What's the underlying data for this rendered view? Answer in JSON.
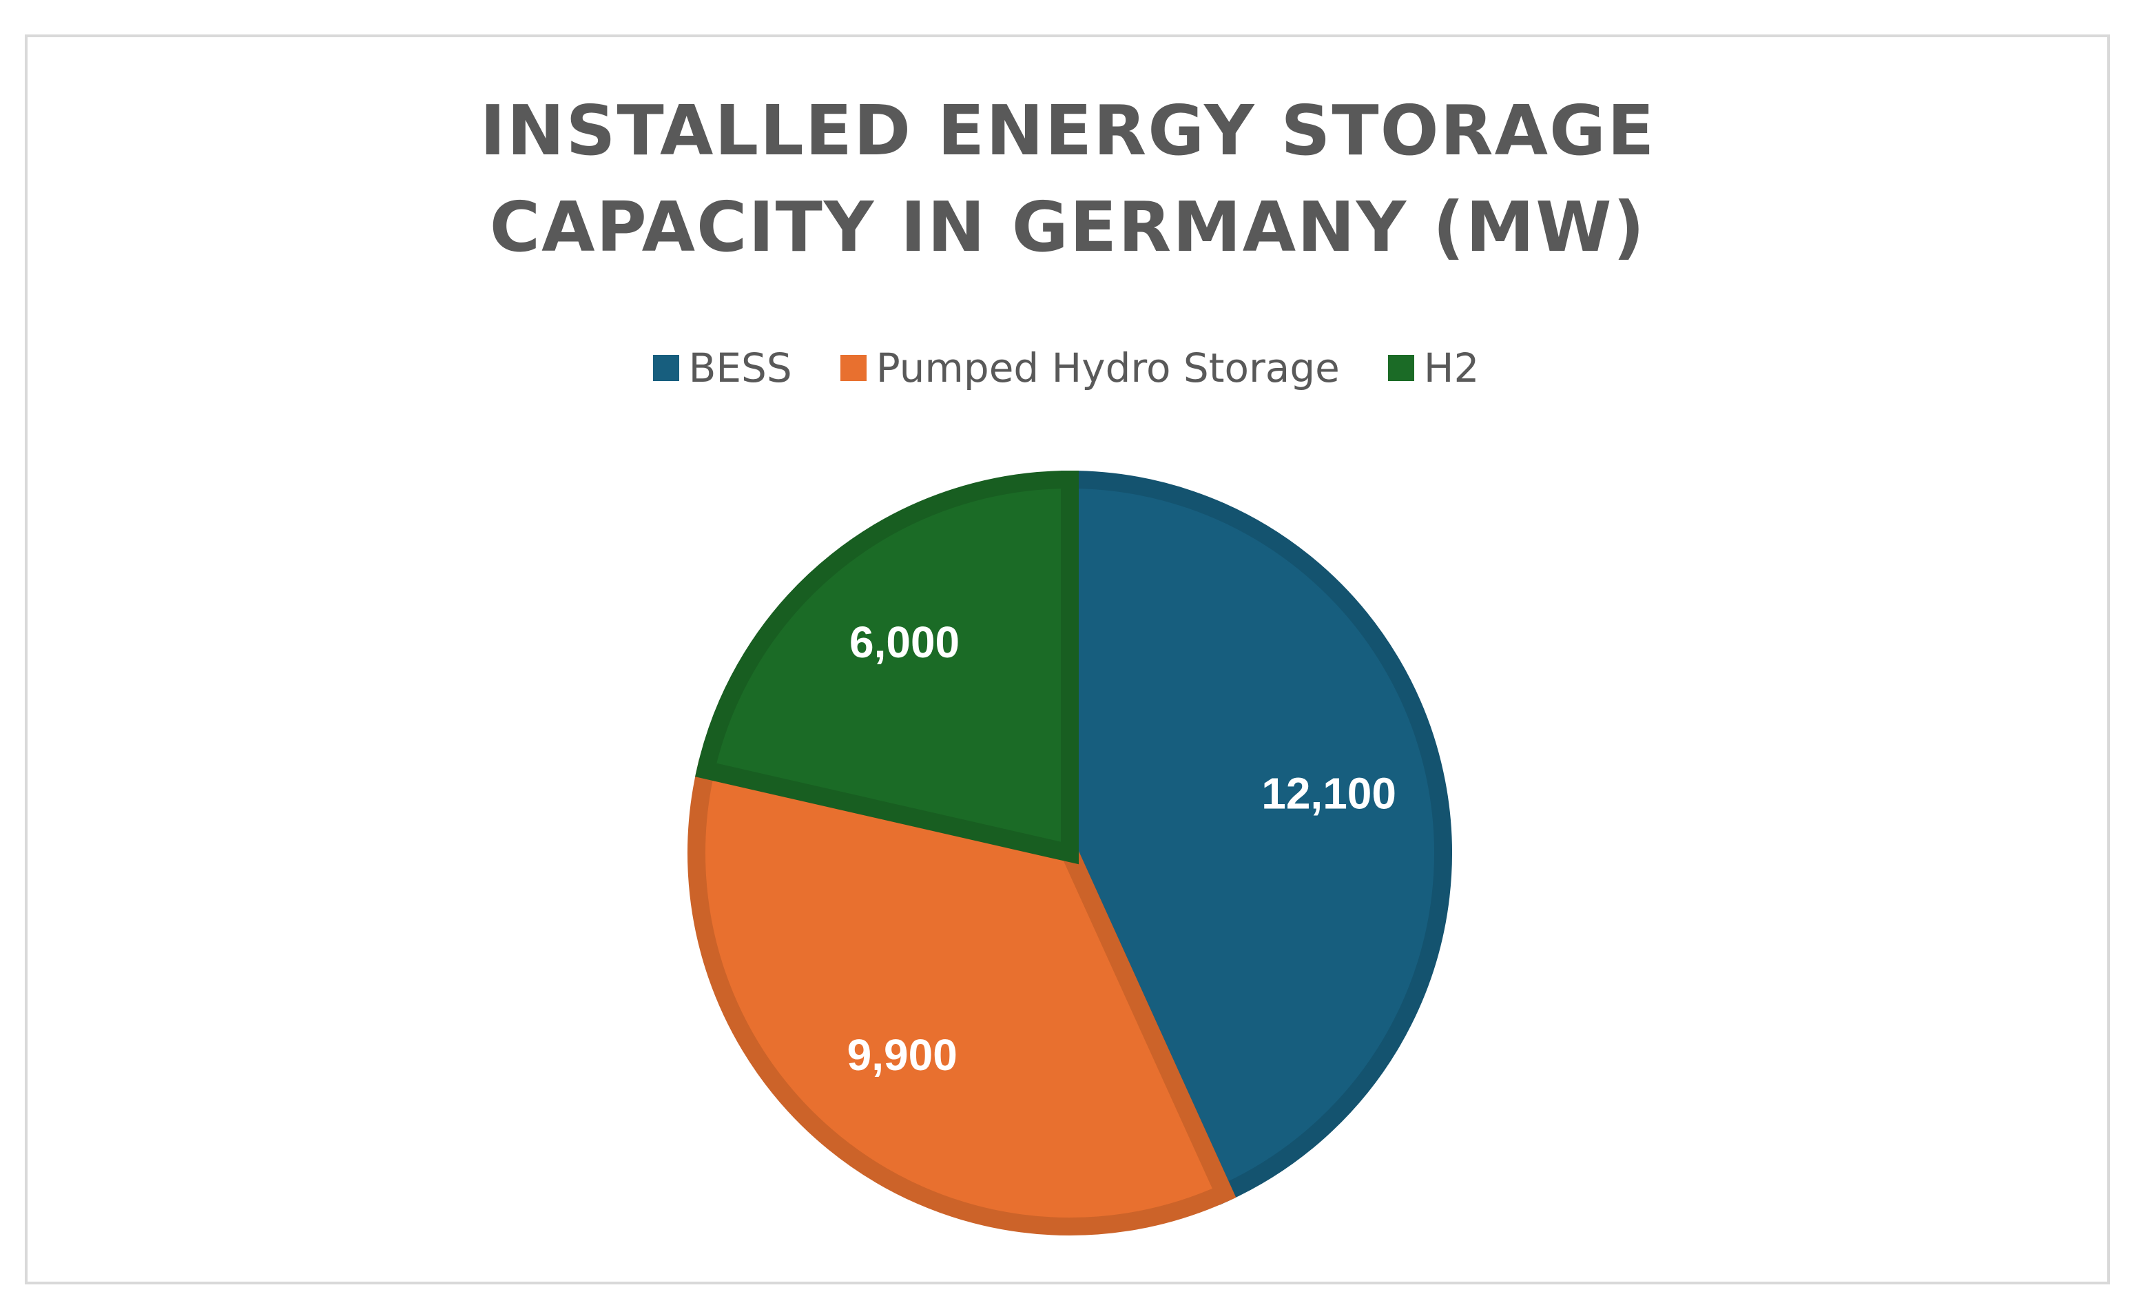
{
  "chart_data": {
    "type": "pie",
    "title": "INSTALLED ENERGY STORAGE CAPACITY IN GERMANY (MW)",
    "categories": [
      "BESS",
      "Pumped Hydro Storage",
      "H2"
    ],
    "values": [
      12100,
      9900,
      6000
    ],
    "value_labels": [
      "12,100",
      "9,900",
      "6,000"
    ],
    "colors": [
      "#175e7e",
      "#e8702f",
      "#1b6b26"
    ],
    "legend": "top"
  }
}
